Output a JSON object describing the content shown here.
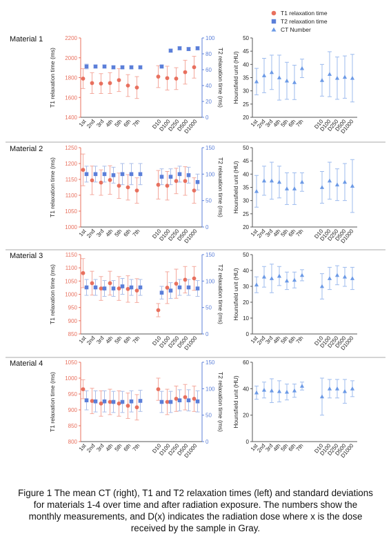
{
  "colors": {
    "t1": "#e8705e",
    "t2": "#5b7fd9",
    "ct": "#6c9ae6",
    "t1_bar": "#f4a89c",
    "t2_bar": "#aabde8",
    "ct_bar": "#9dbbee",
    "axis": "#555555",
    "separator": "#aaaaaa"
  },
  "legend": {
    "items": [
      {
        "label": "T1 relaxation time",
        "marker": "circle"
      },
      {
        "label": "T2 relaxation time",
        "marker": "square"
      },
      {
        "label": "CT Number",
        "marker": "triangle"
      }
    ]
  },
  "caption": "Figure 1 The mean CT (right), T1 and T2 relaxation times (left) and standard deviations for materials 1-4 over time and after radiation exposure. The numbers show the monthly measurements, and D(x) indicates the radiation dose where x is the dose received by the sample in Gray.",
  "chart_data": [
    {
      "material": "Material 1",
      "relaxation": {
        "type": "scatter",
        "categories": [
          "1st",
          "2nd",
          "3rd",
          "4th",
          "5th",
          "6th",
          "7th",
          "D10",
          "D100",
          "D250",
          "D500",
          "D1000"
        ],
        "ylabel_left": "T1 relaxation time (ms)",
        "ylabel_right": "T2 relaxation time (ms)",
        "ylim_left": [
          1400,
          2200
        ],
        "yticks_left": [
          1400,
          1600,
          1800,
          2000,
          2200
        ],
        "ylim_right": [
          0,
          100
        ],
        "yticks_right": [
          0,
          20,
          40,
          60,
          80,
          100
        ],
        "series": [
          {
            "name": "T1 relaxation time",
            "axis": "left",
            "values": [
              1790,
              1745,
              1740,
              1745,
              1775,
              1720,
              1700,
              1810,
              1795,
              1790,
              1855,
              1905
            ],
            "errors": [
              100,
              105,
              100,
              105,
              115,
              110,
              110,
              110,
              120,
              110,
              120,
              110
            ]
          },
          {
            "name": "T2 relaxation time",
            "axis": "right",
            "values": [
              64,
              64,
              64,
              63,
              63,
              63,
              63,
              64,
              84,
              87,
              86,
              87
            ],
            "errors": [
              3,
              2,
              2,
              2,
              2,
              2,
              2,
              2,
              2,
              2,
              2,
              2
            ]
          }
        ]
      },
      "ct": {
        "type": "scatter",
        "categories": [
          "1st",
          "2nd",
          "3rd",
          "4th",
          "5th",
          "6th",
          "7th",
          "D10",
          "D100",
          "D250",
          "D500",
          "D1000"
        ],
        "ylabel": "Hounsfield unit (HU)",
        "ylim": [
          20,
          50
        ],
        "yticks": [
          20,
          25,
          30,
          35,
          40,
          45,
          50
        ],
        "series": [
          {
            "name": "CT Number",
            "values": [
              33.5,
              35.8,
              37,
              35,
              33.8,
              33.2,
              38.5,
              34,
              36.3,
              34.8,
              35.2,
              34.8
            ],
            "errors": [
              5,
              6.5,
              6.5,
              8.5,
              7,
              6.5,
              3.5,
              6,
              8.5,
              8,
              8,
              9
            ]
          }
        ]
      }
    },
    {
      "material": "Material 2",
      "relaxation": {
        "type": "scatter",
        "categories": [
          "1st",
          "2nd",
          "3rd",
          "4th",
          "5th",
          "6th",
          "7th",
          "D10",
          "D100",
          "D250",
          "D500",
          "D1000"
        ],
        "ylabel_left": "T1 relaxation time (ms)",
        "ylabel_right": "T2 relaxation time (ms)",
        "ylim_left": [
          1000,
          1250
        ],
        "yticks_left": [
          1000,
          1050,
          1100,
          1150,
          1200,
          1250
        ],
        "ylim_right": [
          0,
          150
        ],
        "yticks_right": [
          0,
          50,
          100,
          150
        ],
        "series": [
          {
            "name": "T1 relaxation time",
            "axis": "left",
            "values": [
              1180,
              1147,
              1140,
              1148,
              1130,
              1125,
              1115,
              1133,
              1130,
              1145,
              1145,
              1115
            ],
            "errors": [
              50,
              45,
              40,
              45,
              40,
              40,
              40,
              45,
              45,
              40,
              45,
              40
            ]
          },
          {
            "name": "T2 relaxation time",
            "axis": "right",
            "values": [
              100,
              100,
              100,
              98,
              100,
              100,
              100,
              95,
              95,
              100,
              98,
              85
            ],
            "errors": [
              15,
              15,
              15,
              15,
              20,
              20,
              20,
              15,
              15,
              15,
              15,
              15
            ]
          }
        ]
      },
      "ct": {
        "type": "scatter",
        "categories": [
          "1st",
          "2nd",
          "3rd",
          "4th",
          "5th",
          "6th",
          "7th",
          "D10",
          "D100",
          "D250",
          "D500",
          "D1000"
        ],
        "ylabel": "Hounsfield unit (HU)",
        "ylim": [
          20,
          50
        ],
        "yticks": [
          20,
          25,
          30,
          35,
          40,
          45,
          50
        ],
        "series": [
          {
            "name": "CT Number",
            "values": [
              33.5,
              37.5,
              37.5,
              37,
              34.5,
              34.5,
              37,
              35,
              37.5,
              36,
              37,
              35.5
            ],
            "errors": [
              6,
              5.5,
              7,
              6,
              6,
              6,
              3.5,
              6,
              7,
              6,
              7,
              10
            ]
          }
        ]
      }
    },
    {
      "material": "Material 3",
      "relaxation": {
        "type": "scatter",
        "categories": [
          "1st",
          "2nd",
          "3rd",
          "4th",
          "5th",
          "6th",
          "7th",
          "D10",
          "D100",
          "D250",
          "D500",
          "D1000"
        ],
        "ylabel_left": "T1 relaxation time (ms)",
        "ylabel_right": "T2 relaxation time (ms)",
        "ylim_left": [
          850,
          1150
        ],
        "yticks_left": [
          850,
          900,
          950,
          1000,
          1050,
          1100,
          1150
        ],
        "ylim_right": [
          0,
          150
        ],
        "yticks_right": [
          0,
          50,
          100,
          150
        ],
        "series": [
          {
            "name": "T1 relaxation time",
            "axis": "left",
            "values": [
              1080,
              1042,
              1022,
              1042,
              1022,
              1020,
              1014,
              940,
              1025,
              1040,
              1055,
              1060
            ],
            "errors": [
              55,
              45,
              45,
              45,
              45,
              50,
              45,
              25,
              60,
              55,
              50,
              45
            ]
          },
          {
            "name": "T2 relaxation time",
            "axis": "right",
            "values": [
              88,
              88,
              86,
              86,
              90,
              88,
              88,
              78,
              82,
              88,
              88,
              86
            ],
            "errors": [
              15,
              15,
              15,
              15,
              15,
              15,
              15,
              12,
              15,
              15,
              15,
              15
            ]
          }
        ]
      },
      "ct": {
        "type": "scatter",
        "categories": [
          "1st",
          "2nd",
          "3rd",
          "4th",
          "5th",
          "6th",
          "7th",
          "D10",
          "D100",
          "D250",
          "D500",
          "D1000"
        ],
        "ylabel": "Hounsfield unit (HU)",
        "ylim": [
          0,
          50
        ],
        "yticks": [
          0,
          10,
          20,
          30,
          40,
          50
        ],
        "series": [
          {
            "name": "CT Number",
            "values": [
              31,
              36,
              35,
              36.5,
              33.5,
              34,
              37,
              30,
              35,
              37,
              36,
              35
            ],
            "errors": [
              5,
              6.5,
              9,
              6,
              5.5,
              5,
              3.5,
              8,
              7,
              6,
              6,
              7
            ]
          }
        ]
      }
    },
    {
      "material": "Material 4",
      "relaxation": {
        "type": "scatter",
        "categories": [
          "1st",
          "2nd",
          "3rd",
          "4th",
          "5th",
          "6th",
          "7th",
          "D10",
          "D100",
          "D250",
          "D500",
          "D1000"
        ],
        "ylabel_left": "T1 relaxation time (ms)",
        "ylabel_right": "T2 relaxation time (ms)",
        "ylim_left": [
          800,
          1050
        ],
        "yticks_left": [
          800,
          850,
          900,
          950,
          1000,
          1050
        ],
        "ylim_right": [
          0,
          150
        ],
        "yticks_right": [
          0,
          50,
          100,
          150
        ],
        "series": [
          {
            "name": "T1 relaxation time",
            "axis": "left",
            "values": [
              965,
              928,
              920,
              925,
              920,
              913,
              908,
              965,
              925,
              935,
              940,
              935
            ],
            "errors": [
              30,
              40,
              40,
              40,
              40,
              40,
              40,
              35,
              40,
              40,
              40,
              40
            ]
          },
          {
            "name": "T2 relaxation time",
            "axis": "right",
            "values": [
              78,
              76,
              76,
              75,
              75,
              76,
              77,
              75,
              75,
              78,
              78,
              76
            ],
            "errors": [
              18,
              20,
              20,
              20,
              20,
              20,
              20,
              20,
              20,
              20,
              20,
              20
            ]
          }
        ]
      },
      "ct": {
        "type": "scatter",
        "categories": [
          "1st",
          "2nd",
          "3rd",
          "4th",
          "5th",
          "6th",
          "7th",
          "D10",
          "D100",
          "D250",
          "D500",
          "D1000"
        ],
        "ylabel": "Hounsfield unit (HU)",
        "ylim": [
          0,
          60
        ],
        "yticks": [
          0,
          20,
          40,
          60
        ],
        "series": [
          {
            "name": "CT Number",
            "values": [
              37,
              39,
              38.5,
              38,
              37.5,
              38.5,
              42,
              34,
              40,
              40,
              38,
              40
            ],
            "errors": [
              5,
              6,
              9,
              8,
              6,
              5,
              3,
              14,
              7,
              7,
              9,
              6
            ]
          }
        ]
      }
    }
  ]
}
